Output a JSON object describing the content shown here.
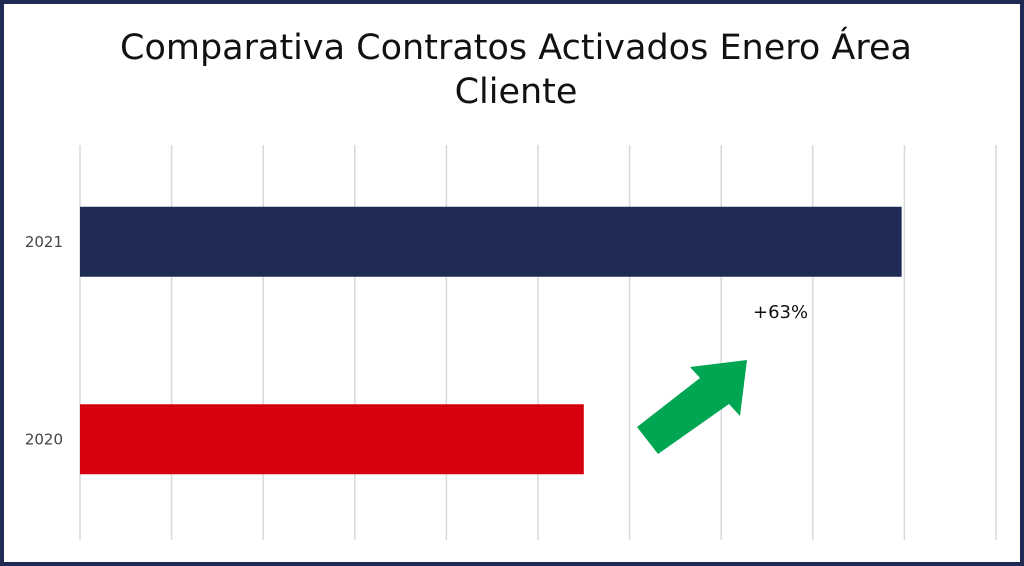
{
  "chart_data": {
    "type": "bar",
    "orientation": "horizontal",
    "title": "Comparativa Contratos Activados Enero Área Cliente",
    "categories": [
      "2021",
      "2020"
    ],
    "series": [
      {
        "values": [
          8.97,
          5.5
        ],
        "colors": [
          "#1f2a55",
          "#d7000f"
        ]
      }
    ],
    "xlim": [
      0,
      10
    ],
    "grid": true,
    "x_ticks_visible": false,
    "annotation": {
      "text": "+63%",
      "arrow_color": "#00a651",
      "direction": "up-right"
    }
  }
}
